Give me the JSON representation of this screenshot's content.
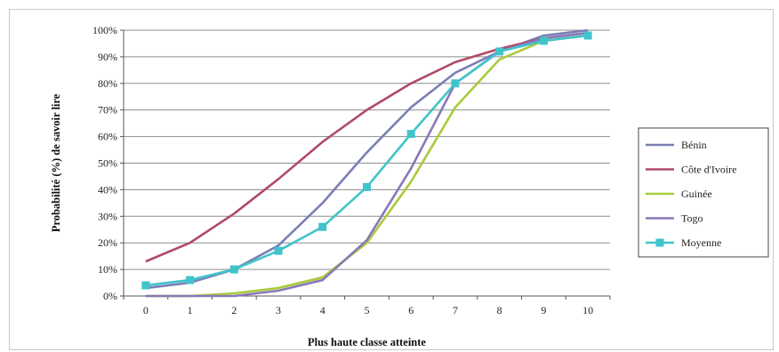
{
  "chart_data": {
    "type": "line",
    "title": "",
    "xlabel": "Plus haute classe atteinte",
    "ylabel": "Probabilité (%) de savoir lire",
    "x": [
      0,
      1,
      2,
      3,
      4,
      5,
      6,
      7,
      8,
      9,
      10
    ],
    "xlim": [
      0,
      10
    ],
    "ylim": [
      0,
      100
    ],
    "yticks": [
      "0%",
      "10%",
      "20%",
      "30%",
      "40%",
      "50%",
      "60%",
      "70%",
      "80%",
      "90%",
      "100%"
    ],
    "grid": true,
    "legend_position": "right",
    "series": [
      {
        "name": "Bénin",
        "color": "#7b7fb5",
        "marker": "none",
        "values": [
          3,
          5,
          10,
          19,
          35,
          54,
          71,
          84,
          92,
          98,
          100
        ]
      },
      {
        "name": "Côte d'Ivoire",
        "color": "#b04a6a",
        "marker": "none",
        "values": [
          13,
          20,
          31,
          44,
          58,
          70,
          80,
          88,
          93,
          97,
          99
        ]
      },
      {
        "name": "Guinée",
        "color": "#a8cc3a",
        "marker": "none",
        "values": [
          0,
          0,
          1,
          3,
          7,
          20,
          43,
          71,
          89,
          96,
          98
        ]
      },
      {
        "name": "Togo",
        "color": "#8a78b8",
        "marker": "none",
        "values": [
          0,
          0,
          0,
          2,
          6,
          21,
          48,
          80,
          92,
          97,
          99
        ]
      },
      {
        "name": "Moyenne",
        "color": "#3fc4cc",
        "marker": "square",
        "values": [
          4,
          6,
          10,
          17,
          26,
          41,
          61,
          80,
          92,
          96,
          98
        ]
      }
    ]
  }
}
